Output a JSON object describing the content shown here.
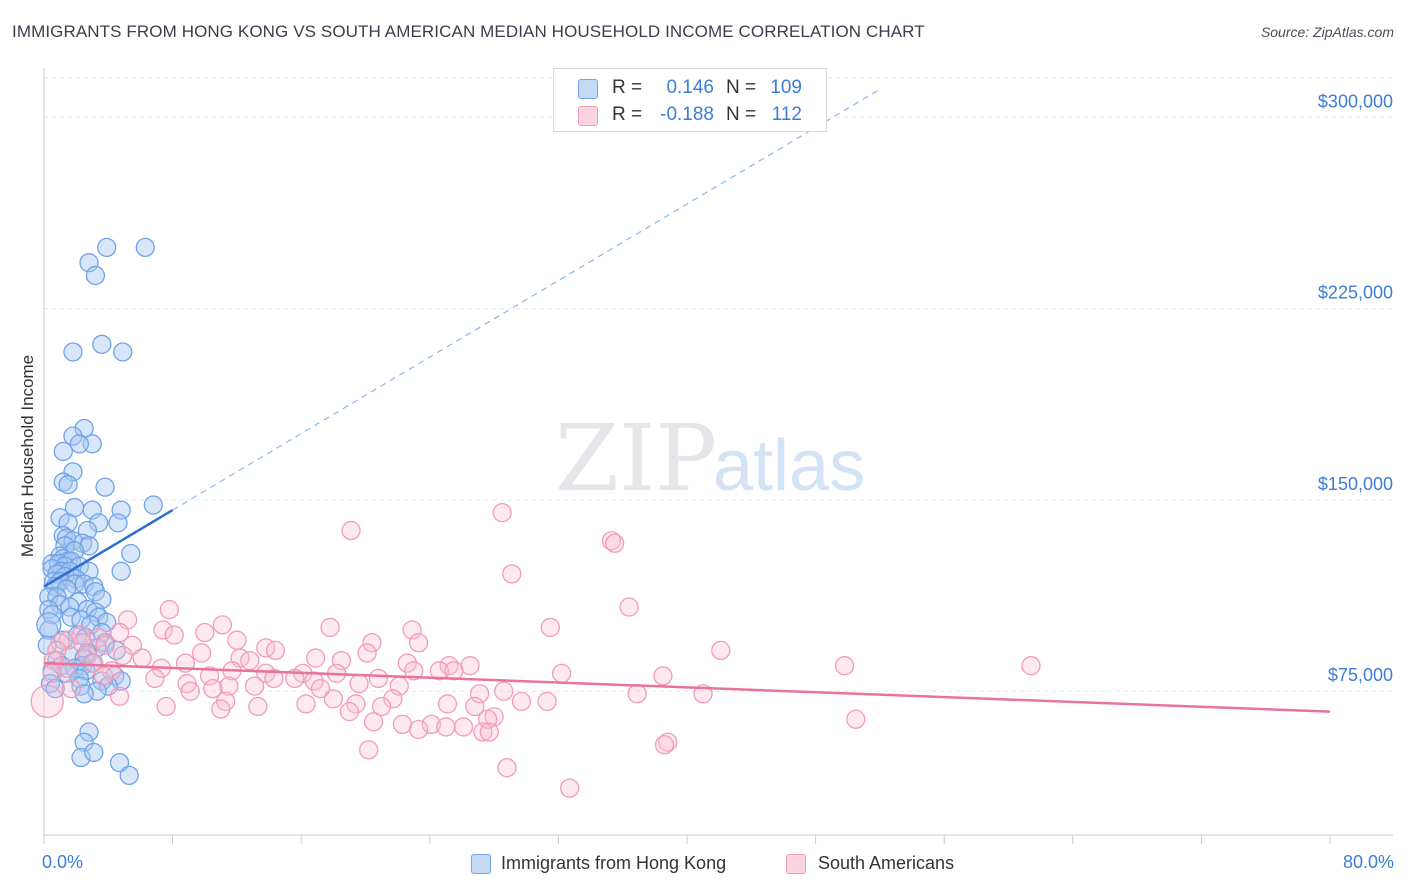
{
  "title": "IMMIGRANTS FROM HONG KONG VS SOUTH AMERICAN MEDIAN HOUSEHOLD INCOME CORRELATION CHART",
  "source": "Source: ZipAtlas.com",
  "watermark": {
    "zip": "ZIP",
    "atlas": "atlas"
  },
  "legend_top": [
    {
      "r_label": "R =",
      "r_value": "0.146",
      "n_label": "N =",
      "n_value": "109",
      "color": "#6fa3e8"
    },
    {
      "r_label": "R =",
      "r_value": "-0.188",
      "n_label": "N =",
      "n_value": "112",
      "color": "#f29bb8"
    }
  ],
  "legend_bottom": [
    {
      "label": "Immigrants from Hong Kong",
      "color": "#a9c8f2"
    },
    {
      "label": "South Americans",
      "color": "#f8c0d2"
    }
  ],
  "chart_data": {
    "type": "scatter",
    "ylabel": "Median Household Income",
    "x_tick_labels": {
      "left": "0.0%",
      "right": "80.0%"
    },
    "xlim": [
      0,
      80
    ],
    "ylim": [
      10000,
      310000
    ],
    "y_ticks": [
      {
        "value": 75000,
        "label": "$75,000"
      },
      {
        "value": 150000,
        "label": "$150,000"
      },
      {
        "value": 225000,
        "label": "$225,000"
      },
      {
        "value": 300000,
        "label": "$300,000"
      }
    ],
    "grid": "horizontal dashed",
    "legend_placement": "top-center and bottom",
    "series": [
      {
        "name": "Immigrants from Hong Kong",
        "color": "#6fa3e8",
        "trend": {
          "x": [
            0,
            8
          ],
          "y": [
            116000,
            146000
          ],
          "dashed_to": [
            52,
            311000
          ]
        },
        "points": [
          [
            3.9,
            249000
          ],
          [
            6.3,
            249000
          ],
          [
            2.8,
            243000
          ],
          [
            3.2,
            238000
          ],
          [
            1.8,
            208000
          ],
          [
            3.6,
            211000
          ],
          [
            4.9,
            208000
          ],
          [
            2.5,
            178000
          ],
          [
            1.8,
            175000
          ],
          [
            3.0,
            172000
          ],
          [
            2.2,
            172000
          ],
          [
            1.2,
            169000
          ],
          [
            1.8,
            161000
          ],
          [
            1.2,
            157000
          ],
          [
            1.5,
            156000
          ],
          [
            3.8,
            155000
          ],
          [
            1.9,
            147000
          ],
          [
            6.8,
            148000
          ],
          [
            3.0,
            146000
          ],
          [
            4.8,
            146000
          ],
          [
            1.0,
            143000
          ],
          [
            1.5,
            141000
          ],
          [
            3.4,
            141000
          ],
          [
            4.6,
            141000
          ],
          [
            2.7,
            138000
          ],
          [
            1.2,
            136000
          ],
          [
            1.4,
            135000
          ],
          [
            1.8,
            134000
          ],
          [
            2.4,
            133000
          ],
          [
            2.8,
            132000
          ],
          [
            1.3,
            132000
          ],
          [
            1.9,
            130000
          ],
          [
            5.4,
            129000
          ],
          [
            1.0,
            128000
          ],
          [
            1.2,
            127000
          ],
          [
            1.5,
            126000
          ],
          [
            1.7,
            126000
          ],
          [
            0.5,
            125000
          ],
          [
            0.9,
            125000
          ],
          [
            1.3,
            124000
          ],
          [
            2.2,
            124000
          ],
          [
            0.5,
            123000
          ],
          [
            1.1,
            122000
          ],
          [
            1.6,
            122000
          ],
          [
            2.8,
            122000
          ],
          [
            4.8,
            122000
          ],
          [
            0.8,
            121000
          ],
          [
            1.3,
            120000
          ],
          [
            2.0,
            119000
          ],
          [
            0.6,
            118000
          ],
          [
            1.0,
            118000
          ],
          [
            1.9,
            117000
          ],
          [
            2.5,
            117000
          ],
          [
            0.7,
            116000
          ],
          [
            3.1,
            116000
          ],
          [
            1.4,
            115000
          ],
          [
            3.2,
            114000
          ],
          [
            0.3,
            112000
          ],
          [
            0.8,
            112000
          ],
          [
            3.6,
            111000
          ],
          [
            2.1,
            110000
          ],
          [
            1.0,
            109000
          ],
          [
            1.6,
            108000
          ],
          [
            0.3,
            107000
          ],
          [
            2.7,
            107000
          ],
          [
            3.2,
            106000
          ],
          [
            0.5,
            105000
          ],
          [
            1.7,
            104000
          ],
          [
            3.4,
            104000
          ],
          [
            2.3,
            103000
          ],
          [
            3.9,
            102000
          ],
          [
            2.9,
            101000
          ],
          [
            0.3,
            99000
          ],
          [
            3.6,
            98000
          ],
          [
            2.1,
            97000
          ],
          [
            2.6,
            96000
          ],
          [
            1.2,
            95000
          ],
          [
            3.8,
            94000
          ],
          [
            0.2,
            93000
          ],
          [
            3.3,
            92000
          ],
          [
            4.5,
            91000
          ],
          [
            2.7,
            90000
          ],
          [
            1.6,
            89000
          ],
          [
            2.5,
            88000
          ],
          [
            0.8,
            87000
          ],
          [
            3.0,
            86000
          ],
          [
            2.4,
            85000
          ],
          [
            1.1,
            85000
          ],
          [
            1.9,
            84000
          ],
          [
            2.6,
            83000
          ],
          [
            0.5,
            83000
          ],
          [
            1.4,
            82000
          ],
          [
            4.4,
            81000
          ],
          [
            2.2,
            80000
          ],
          [
            3.6,
            79000
          ],
          [
            4.8,
            79000
          ],
          [
            0.4,
            78000
          ],
          [
            2.3,
            77000
          ],
          [
            4.0,
            77000
          ],
          [
            0.7,
            76000
          ],
          [
            3.3,
            75000
          ],
          [
            2.5,
            74000
          ],
          [
            2.8,
            59000
          ],
          [
            2.5,
            55000
          ],
          [
            2.3,
            49000
          ],
          [
            4.7,
            47000
          ],
          [
            5.3,
            42000
          ],
          [
            3.1,
            51000
          ],
          [
            0.3,
            101000
          ]
        ]
      },
      {
        "name": "South Americans",
        "color": "#f29bb8",
        "trend": {
          "x": [
            0,
            80
          ],
          "y": [
            86000,
            67000
          ]
        },
        "points": [
          [
            28.5,
            145000
          ],
          [
            19.1,
            138000
          ],
          [
            35.3,
            134000
          ],
          [
            35.5,
            133000
          ],
          [
            29.1,
            121000
          ],
          [
            36.4,
            108000
          ],
          [
            7.8,
            107000
          ],
          [
            5.2,
            103000
          ],
          [
            11.1,
            101000
          ],
          [
            17.8,
            100000
          ],
          [
            31.5,
            100000
          ],
          [
            22.9,
            99000
          ],
          [
            7.4,
            99000
          ],
          [
            4.7,
            98000
          ],
          [
            10.0,
            98000
          ],
          [
            8.1,
            97000
          ],
          [
            2.3,
            97000
          ],
          [
            3.4,
            96000
          ],
          [
            1.5,
            95000
          ],
          [
            12.0,
            95000
          ],
          [
            1.0,
            94000
          ],
          [
            20.4,
            94000
          ],
          [
            2.4,
            94000
          ],
          [
            23.3,
            94000
          ],
          [
            3.8,
            93000
          ],
          [
            5.5,
            93000
          ],
          [
            13.8,
            92000
          ],
          [
            14.4,
            91000
          ],
          [
            42.1,
            91000
          ],
          [
            0.8,
            91000
          ],
          [
            9.8,
            90000
          ],
          [
            20.1,
            90000
          ],
          [
            2.7,
            89000
          ],
          [
            4.9,
            89000
          ],
          [
            12.2,
            88000
          ],
          [
            6.1,
            88000
          ],
          [
            16.9,
            88000
          ],
          [
            0.6,
            87000
          ],
          [
            12.8,
            87000
          ],
          [
            18.5,
            87000
          ],
          [
            3.1,
            86000
          ],
          [
            8.8,
            86000
          ],
          [
            22.6,
            86000
          ],
          [
            25.2,
            85000
          ],
          [
            26.5,
            85000
          ],
          [
            49.8,
            85000
          ],
          [
            61.4,
            85000
          ],
          [
            1.4,
            84000
          ],
          [
            7.3,
            84000
          ],
          [
            4.2,
            83000
          ],
          [
            11.7,
            83000
          ],
          [
            23.0,
            83000
          ],
          [
            24.6,
            83000
          ],
          [
            25.5,
            83000
          ],
          [
            0.5,
            82000
          ],
          [
            13.8,
            82000
          ],
          [
            16.1,
            82000
          ],
          [
            18.2,
            82000
          ],
          [
            32.2,
            82000
          ],
          [
            38.5,
            81000
          ],
          [
            10.3,
            81000
          ],
          [
            3.7,
            81000
          ],
          [
            14.3,
            80000
          ],
          [
            15.6,
            80000
          ],
          [
            6.9,
            80000
          ],
          [
            20.8,
            80000
          ],
          [
            16.8,
            79000
          ],
          [
            8.9,
            78000
          ],
          [
            19.6,
            78000
          ],
          [
            11.5,
            77000
          ],
          [
            13.1,
            77000
          ],
          [
            22.1,
            77000
          ],
          [
            17.2,
            76000
          ],
          [
            1.7,
            76000
          ],
          [
            10.5,
            76000
          ],
          [
            9.1,
            75000
          ],
          [
            28.6,
            75000
          ],
          [
            27.1,
            74000
          ],
          [
            36.9,
            74000
          ],
          [
            41.0,
            74000
          ],
          [
            4.7,
            73000
          ],
          [
            18.0,
            72000
          ],
          [
            21.7,
            72000
          ],
          [
            11.3,
            71000
          ],
          [
            29.7,
            71000
          ],
          [
            31.3,
            71000
          ],
          [
            16.3,
            70000
          ],
          [
            25.1,
            70000
          ],
          [
            19.4,
            70000
          ],
          [
            13.3,
            69000
          ],
          [
            21.0,
            69000
          ],
          [
            26.8,
            69000
          ],
          [
            7.6,
            69000
          ],
          [
            11.0,
            68000
          ],
          [
            19.0,
            67000
          ],
          [
            28.0,
            65000
          ],
          [
            27.6,
            64000
          ],
          [
            50.5,
            64000
          ],
          [
            20.5,
            63000
          ],
          [
            24.1,
            62000
          ],
          [
            22.3,
            62000
          ],
          [
            25.0,
            61000
          ],
          [
            26.1,
            61000
          ],
          [
            23.3,
            60000
          ],
          [
            27.3,
            59000
          ],
          [
            27.7,
            59000
          ],
          [
            38.8,
            55000
          ],
          [
            38.6,
            54000
          ],
          [
            20.2,
            52000
          ],
          [
            28.8,
            45000
          ],
          [
            32.7,
            37000
          ],
          [
            0.2,
            71000
          ]
        ]
      }
    ]
  }
}
